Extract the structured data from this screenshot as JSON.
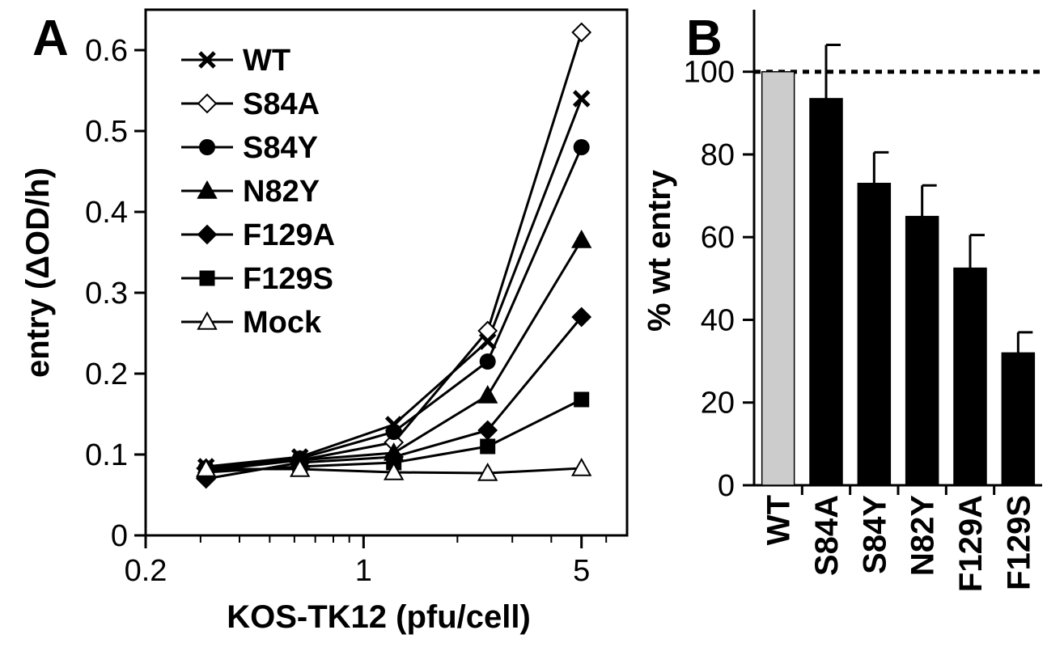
{
  "chart_data": [
    {
      "type": "line",
      "panel_label": "A",
      "xlabel": "KOS-TK12 (pfu/cell)",
      "ylabel": "entry (ΔOD/h)",
      "x_scale": "log",
      "xlim": [
        0.2,
        7
      ],
      "ylim": [
        0,
        0.65
      ],
      "x_ticks": [
        0.2,
        1,
        5
      ],
      "x_tick_labels": [
        "0.2",
        "1",
        "5"
      ],
      "x_minor_ticks": [
        0.3,
        0.4,
        0.5,
        0.6,
        0.7,
        0.8,
        0.9,
        2,
        3,
        4,
        6
      ],
      "y_ticks": [
        0,
        0.1,
        0.2,
        0.3,
        0.4,
        0.5,
        0.6
      ],
      "y_tick_labels": [
        "0",
        "0.1",
        "0.2",
        "0.3",
        "0.4",
        "0.5",
        "0.6"
      ],
      "grid": false,
      "legend_position": "top-left",
      "x": [
        0.3125,
        0.625,
        1.25,
        2.5,
        5
      ],
      "series": [
        {
          "name": "WT",
          "marker": "x",
          "values": [
            0.085,
            0.097,
            0.137,
            0.24,
            0.54
          ]
        },
        {
          "name": "S84A",
          "marker": "open-diamond",
          "values": [
            0.083,
            0.093,
            0.115,
            0.253,
            0.622
          ]
        },
        {
          "name": "S84Y",
          "marker": "filled-circle",
          "values": [
            0.083,
            0.095,
            0.128,
            0.215,
            0.48
          ]
        },
        {
          "name": "N82Y",
          "marker": "filled-triangle",
          "values": [
            0.08,
            0.093,
            0.102,
            0.173,
            0.365
          ]
        },
        {
          "name": "F129A",
          "marker": "filled-diamond",
          "values": [
            0.07,
            0.09,
            0.097,
            0.13,
            0.27
          ]
        },
        {
          "name": "F129S",
          "marker": "filled-square",
          "values": [
            0.078,
            0.085,
            0.09,
            0.11,
            0.168
          ]
        },
        {
          "name": "Mock",
          "marker": "open-triangle",
          "values": [
            0.082,
            0.082,
            0.078,
            0.077,
            0.083
          ]
        }
      ]
    },
    {
      "type": "bar",
      "panel_label": "B",
      "ylabel": "% wt entry",
      "ylim": [
        0,
        115
      ],
      "y_ticks": [
        0,
        20,
        40,
        60,
        80,
        100
      ],
      "y_tick_labels": [
        "0",
        "20",
        "40",
        "60",
        "80",
        "100"
      ],
      "reference_line": 100,
      "categories": [
        "WT",
        "S84A",
        "S84Y",
        "N82Y",
        "F129A",
        "F129S"
      ],
      "values": [
        100,
        93.5,
        73,
        65,
        52.5,
        32
      ],
      "errors": [
        0,
        13,
        7.5,
        7.5,
        8,
        5
      ],
      "bar_colors": [
        "#cccccc",
        "#000000",
        "#000000",
        "#000000",
        "#000000",
        "#000000"
      ]
    }
  ]
}
